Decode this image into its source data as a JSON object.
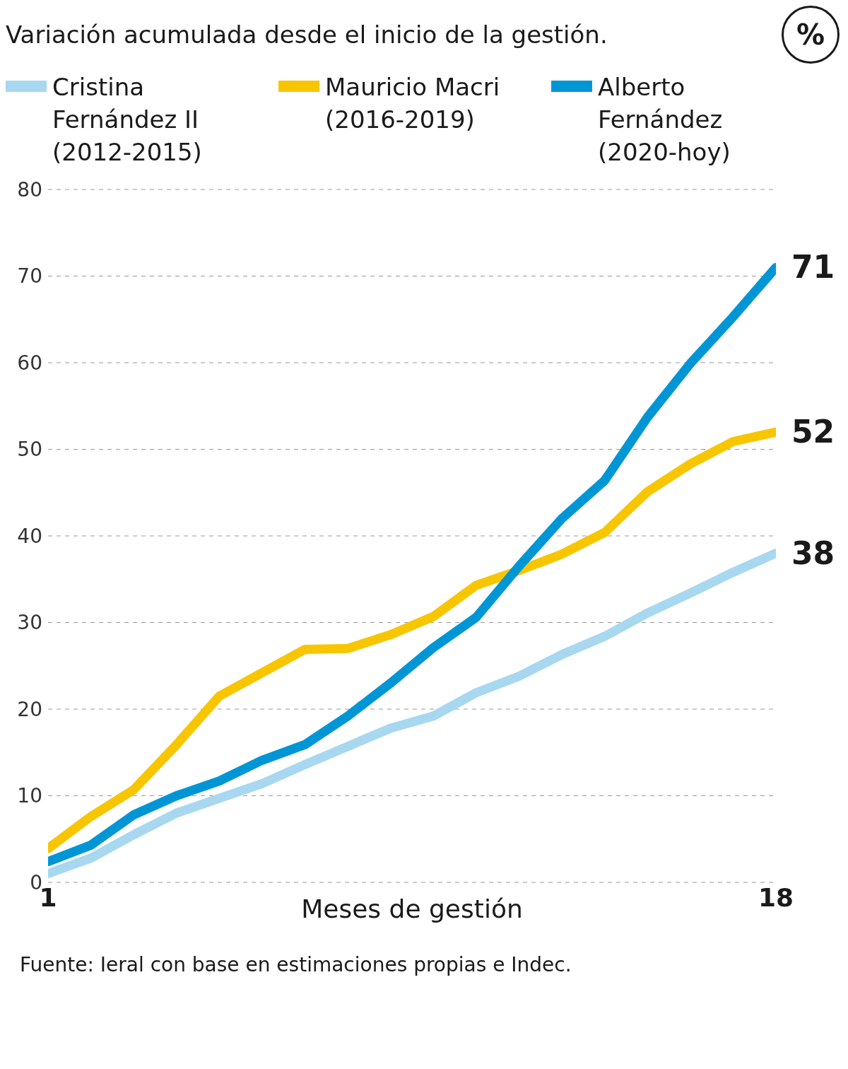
{
  "chart_data": {
    "type": "line",
    "title": "Variación acumulada desde el inicio de la gestión.",
    "xlabel": "Meses de gestión",
    "x": [
      1,
      2,
      3,
      4,
      5,
      6,
      7,
      8,
      9,
      10,
      11,
      12,
      13,
      14,
      15,
      16,
      17,
      18
    ],
    "series": [
      {
        "name": "Cristina Fernández II (2012-2015)",
        "color": "#a8d8f0",
        "values": [
          1.0,
          2.8,
          5.5,
          8.0,
          9.7,
          11.4,
          13.6,
          15.7,
          17.8,
          19.2,
          21.9,
          23.8,
          26.3,
          28.4,
          31.1,
          33.4,
          35.8,
          38
        ],
        "value_labels": [
          null,
          null,
          null,
          null,
          null,
          null,
          null,
          null,
          null,
          null,
          null,
          null,
          null,
          null,
          null,
          null,
          null,
          "38"
        ]
      },
      {
        "name": "Mauricio Macri (2016-2019)",
        "color": "#f7c600",
        "values": [
          3.9,
          7.6,
          10.7,
          15.9,
          21.5,
          24.2,
          26.9,
          27.0,
          28.6,
          30.7,
          34.3,
          36.0,
          37.9,
          40.4,
          45.1,
          48.3,
          50.9,
          52
        ],
        "value_labels": [
          null,
          null,
          null,
          null,
          null,
          null,
          null,
          null,
          null,
          null,
          null,
          null,
          null,
          null,
          null,
          null,
          null,
          "52"
        ]
      },
      {
        "name": "Alberto Fernández (2020-hoy)",
        "color": "#0096d6",
        "values": [
          2.4,
          4.3,
          7.8,
          10.0,
          11.7,
          14.1,
          15.9,
          19.2,
          23.0,
          27.1,
          30.6,
          36.5,
          42.0,
          46.4,
          53.7,
          59.9,
          65.3,
          71
        ],
        "value_labels": [
          null,
          null,
          null,
          null,
          null,
          null,
          null,
          null,
          null,
          null,
          null,
          null,
          null,
          null,
          null,
          null,
          null,
          "71"
        ]
      }
    ],
    "xlim": [
      1,
      18
    ],
    "xticks": [
      1,
      18
    ],
    "ylim": [
      0,
      80
    ],
    "yticks": [
      0,
      10,
      20,
      30,
      40,
      50,
      60,
      70,
      80
    ],
    "grid": "y",
    "legend": "top left",
    "marker": "none",
    "line_style": "solid",
    "annotations": [
      "%",
      "Fuente: Ieral con base en estimaciones propias e Indec."
    ]
  }
}
